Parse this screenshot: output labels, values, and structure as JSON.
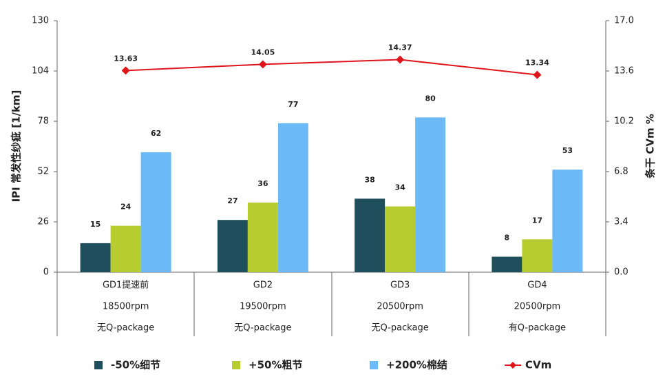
{
  "chart_data": {
    "type": "bar",
    "categories": [
      [
        "GD1提速前",
        "18500rpm",
        "无Q-package"
      ],
      [
        "GD2",
        "19500rpm",
        "无Q-package"
      ],
      [
        "GD3",
        "20500rpm",
        "无Q-package"
      ],
      [
        "GD4",
        "20500rpm",
        "有Q-package"
      ]
    ],
    "ylabel": "IPI 常发性纱疵 [1/km]",
    "y2label": "条干 CVm %",
    "ylim": [
      0,
      130
    ],
    "yticks": [
      0,
      26,
      52,
      78,
      104,
      130
    ],
    "y2lim": [
      0,
      17
    ],
    "y2ticks": [
      {
        "value": 0,
        "label": "0.0"
      },
      3.4,
      6.8,
      10.2,
      13.6,
      {
        "value": 17,
        "label": "17.0"
      }
    ],
    "series": [
      {
        "name": "-50%细节",
        "color": "#1f4e5c",
        "values": [
          15,
          27,
          38,
          8
        ]
      },
      {
        "name": "+50%粗节",
        "color": "#b7cc2e",
        "values": [
          24,
          36,
          34,
          17
        ]
      },
      {
        "name": "+200%棉结",
        "color": "#6cb9f7",
        "values": [
          62,
          77,
          80,
          53
        ]
      },
      {
        "name": "CVm",
        "color": "#e0141b",
        "type": "line",
        "axis": "y2",
        "values": [
          13.63,
          14.05,
          14.37,
          13.34
        ]
      }
    ]
  }
}
